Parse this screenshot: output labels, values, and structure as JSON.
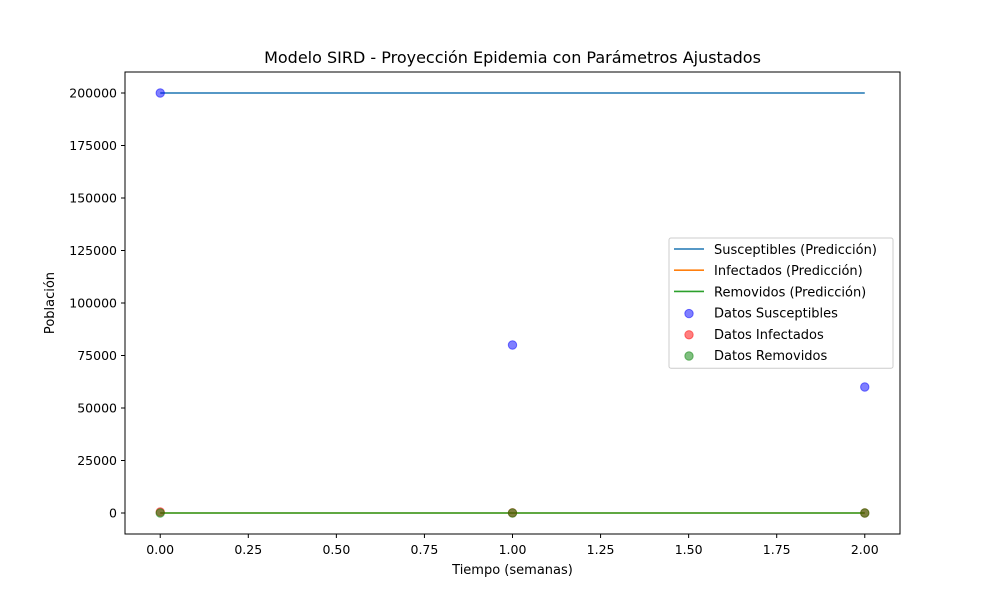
{
  "chart_data": {
    "type": "line",
    "title": "Modelo SIRD - Proyección Epidemia con Parámetros Ajustados",
    "xlabel": "Tiempo (semanas)",
    "ylabel": "Población",
    "xlim": [
      -0.1,
      2.1
    ],
    "ylim": [
      -10000,
      210000
    ],
    "xticks": [
      0.0,
      0.25,
      0.5,
      0.75,
      1.0,
      1.25,
      1.5,
      1.75,
      2.0
    ],
    "xtick_labels": [
      "0.00",
      "0.25",
      "0.50",
      "0.75",
      "1.00",
      "1.25",
      "1.50",
      "1.75",
      "2.00"
    ],
    "yticks": [
      0,
      25000,
      50000,
      75000,
      100000,
      125000,
      150000,
      175000,
      200000
    ],
    "ytick_labels": [
      "0",
      "25000",
      "50000",
      "75000",
      "100000",
      "125000",
      "150000",
      "175000",
      "200000"
    ],
    "grid": false,
    "legend_position": "center-right",
    "lines": [
      {
        "name": "Susceptibles (Predicción)",
        "color": "#1f77b4",
        "x": [
          0,
          1,
          2
        ],
        "y": [
          200000,
          200000,
          200000
        ]
      },
      {
        "name": "Infectados (Predicción)",
        "color": "#ff7f0e",
        "x": [
          0,
          1,
          2
        ],
        "y": [
          0,
          0,
          0
        ]
      },
      {
        "name": "Removidos (Predicción)",
        "color": "#2ca02c",
        "x": [
          0,
          1,
          2
        ],
        "y": [
          0,
          0,
          0
        ]
      }
    ],
    "scatter": [
      {
        "name": "Datos Susceptibles",
        "color": "#0000ff",
        "x": [
          0,
          1,
          2
        ],
        "y": [
          200000,
          80000,
          60000
        ]
      },
      {
        "name": "Datos Infectados",
        "color": "#ff0000",
        "x": [
          0,
          1,
          2
        ],
        "y": [
          500,
          100,
          0
        ]
      },
      {
        "name": "Datos Removidos",
        "color": "#008000",
        "x": [
          0,
          1,
          2
        ],
        "y": [
          0,
          0,
          0
        ]
      }
    ]
  }
}
